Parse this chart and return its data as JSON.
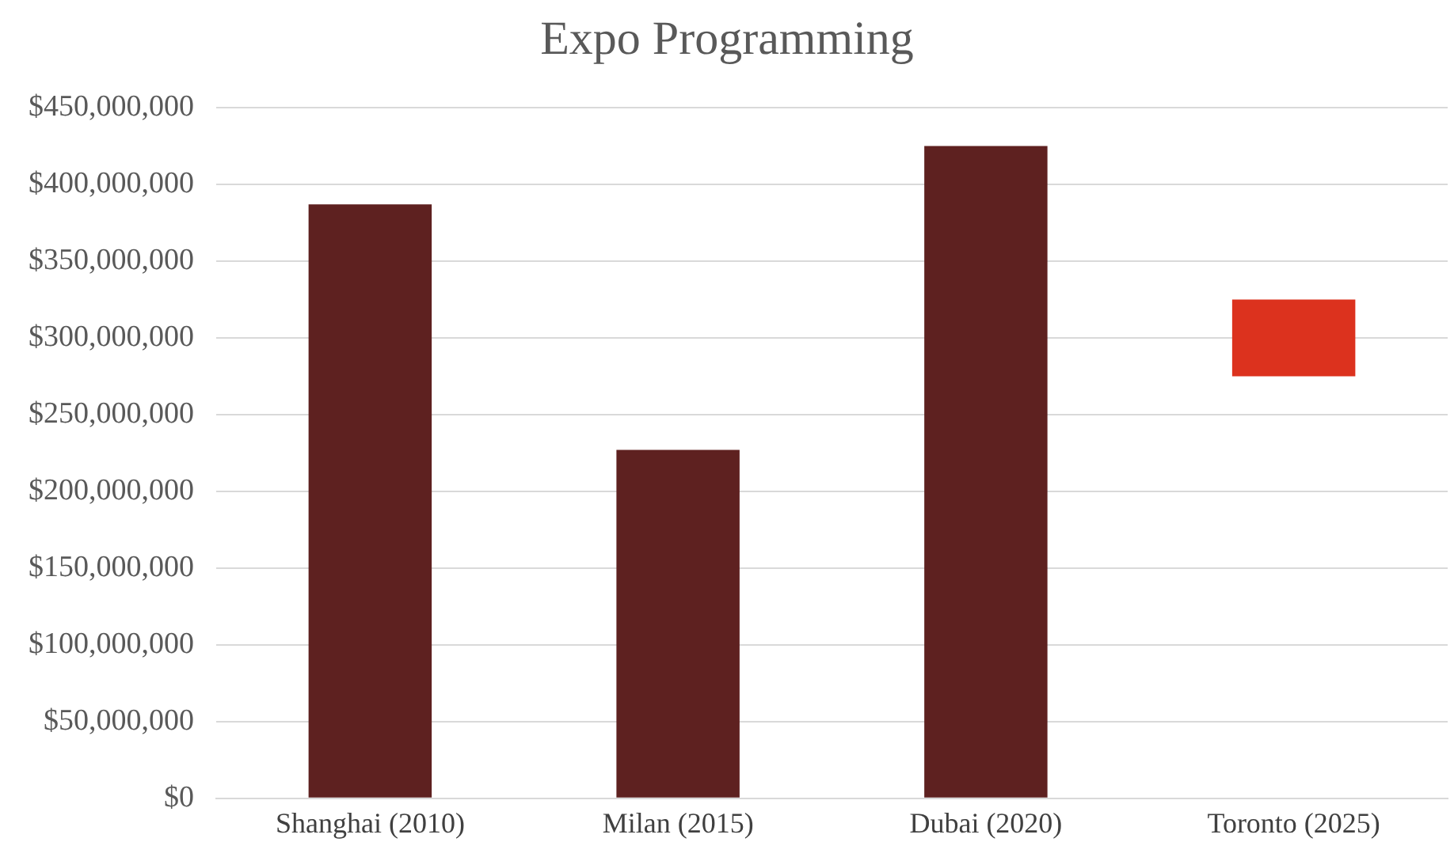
{
  "chart_data": {
    "type": "bar",
    "title": "Expo Programming",
    "categories": [
      "Shanghai (2010)",
      "Milan (2015)",
      "Dubai (2020)",
      "Toronto (2025)"
    ],
    "values": [
      387000000,
      227000000,
      425000000,
      50000000
    ],
    "base": [
      0,
      0,
      0,
      275000000
    ],
    "colors": [
      "#5e2120",
      "#5e2120",
      "#5e2120",
      "#dc321e"
    ],
    "ylim": [
      0,
      450000000
    ],
    "yticks": [
      {
        "value": 0,
        "label": "$0"
      },
      {
        "value": 50000000,
        "label": "$50,000,000"
      },
      {
        "value": 100000000,
        "label": "$100,000,000"
      },
      {
        "value": 150000000,
        "label": "$150,000,000"
      },
      {
        "value": 200000000,
        "label": "$200,000,000"
      },
      {
        "value": 250000000,
        "label": "$250,000,000"
      },
      {
        "value": 300000000,
        "label": "$300,000,000"
      },
      {
        "value": 350000000,
        "label": "$350,000,000"
      },
      {
        "value": 400000000,
        "label": "$400,000,000"
      },
      {
        "value": 450000000,
        "label": "$450,000,000"
      }
    ],
    "grid": "y"
  }
}
